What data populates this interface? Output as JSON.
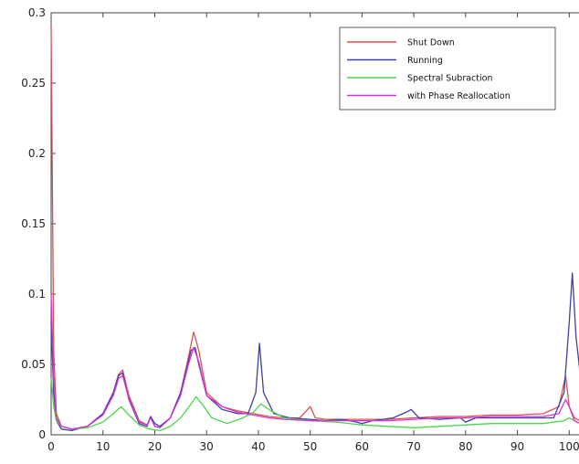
{
  "chart_data": {
    "type": "line",
    "title": "",
    "xlabel": "",
    "ylabel": "",
    "xlim": [
      0,
      104
    ],
    "ylim": [
      0,
      0.3
    ],
    "xticks": [
      0,
      10,
      20,
      30,
      40,
      50,
      60,
      70,
      80,
      90,
      100
    ],
    "yticks": [
      0,
      0.05,
      0.1,
      0.15,
      0.2,
      0.25,
      0.3
    ],
    "ytick_labels": [
      "0",
      "0.05",
      "0.1",
      "0.15",
      "0.2",
      "0.25",
      "0.3"
    ],
    "grid": false,
    "legend": "top-right",
    "series": [
      {
        "name": "Shut Down",
        "color": "#d9534f",
        "x": [
          0,
          0.5,
          1,
          2,
          4,
          7,
          10,
          12,
          13,
          13.8,
          15,
          17,
          18.5,
          19.2,
          20,
          21,
          23,
          25,
          26.5,
          27.5,
          28.5,
          30,
          33,
          36,
          39,
          42,
          45,
          48,
          50,
          51,
          53,
          56,
          60,
          65,
          70,
          75,
          80,
          85,
          90,
          95,
          98,
          99.3,
          100,
          101,
          102,
          104
        ],
        "y": [
          0.29,
          0.06,
          0.015,
          0.006,
          0.004,
          0.006,
          0.015,
          0.03,
          0.043,
          0.046,
          0.028,
          0.01,
          0.007,
          0.013,
          0.006,
          0.005,
          0.012,
          0.03,
          0.055,
          0.073,
          0.06,
          0.03,
          0.02,
          0.017,
          0.015,
          0.013,
          0.012,
          0.012,
          0.02,
          0.012,
          0.011,
          0.011,
          0.011,
          0.011,
          0.012,
          0.013,
          0.013,
          0.014,
          0.014,
          0.015,
          0.02,
          0.042,
          0.02,
          0.012,
          0.01,
          0.01
        ]
      },
      {
        "name": "Running",
        "color": "#3f3fa8",
        "x": [
          0,
          0.5,
          1,
          2,
          4,
          7,
          10,
          12,
          13,
          13.8,
          15,
          17,
          18.5,
          19.2,
          20,
          21,
          23,
          25,
          27,
          27.8,
          28.5,
          30,
          33,
          36,
          38,
          39.5,
          40.2,
          41,
          43,
          46,
          50,
          53,
          56,
          59,
          60,
          62,
          66,
          68.5,
          69.5,
          71,
          75,
          79,
          80,
          82,
          86,
          90,
          94,
          97,
          99,
          100,
          100.6,
          101.3,
          102.5,
          104
        ],
        "y": [
          0.08,
          0.03,
          0.01,
          0.004,
          0.003,
          0.006,
          0.015,
          0.03,
          0.042,
          0.044,
          0.025,
          0.008,
          0.006,
          0.013,
          0.008,
          0.006,
          0.012,
          0.03,
          0.06,
          0.062,
          0.05,
          0.028,
          0.018,
          0.015,
          0.015,
          0.03,
          0.065,
          0.03,
          0.015,
          0.012,
          0.011,
          0.01,
          0.011,
          0.009,
          0.008,
          0.01,
          0.012,
          0.016,
          0.018,
          0.012,
          0.011,
          0.012,
          0.009,
          0.012,
          0.012,
          0.012,
          0.012,
          0.012,
          0.03,
          0.08,
          0.115,
          0.07,
          0.03,
          0.022
        ]
      },
      {
        "name": "Spectral Subraction",
        "color": "#49d649",
        "x": [
          0,
          0.5,
          1,
          2,
          4,
          7,
          10,
          12,
          13.5,
          15,
          17,
          19,
          21,
          23,
          25,
          27,
          28,
          29.5,
          31,
          34,
          37,
          39,
          40.5,
          42,
          45,
          50,
          55,
          60,
          65,
          70,
          75,
          80,
          85,
          90,
          95,
          99,
          100,
          101,
          102,
          104
        ],
        "y": [
          0.04,
          0.02,
          0.01,
          0.006,
          0.004,
          0.005,
          0.009,
          0.015,
          0.02,
          0.014,
          0.007,
          0.004,
          0.003,
          0.006,
          0.012,
          0.022,
          0.027,
          0.02,
          0.012,
          0.008,
          0.012,
          0.016,
          0.022,
          0.018,
          0.012,
          0.01,
          0.009,
          0.007,
          0.006,
          0.005,
          0.006,
          0.007,
          0.008,
          0.008,
          0.008,
          0.01,
          0.012,
          0.01,
          0.008,
          0.007
        ]
      },
      {
        "name": "with Phase Reallocation",
        "color": "#d633d6",
        "x": [
          0,
          0.5,
          1,
          2,
          4,
          7,
          10,
          12,
          13,
          13.8,
          15,
          17,
          18.5,
          19.2,
          20,
          21,
          23,
          25,
          26.5,
          27.5,
          28.5,
          30,
          33,
          36,
          39,
          42,
          45,
          50,
          55,
          60,
          65,
          70,
          75,
          80,
          85,
          90,
          95,
          98,
          99.3,
          100,
          101,
          102,
          104
        ],
        "y": [
          0.1,
          0.04,
          0.012,
          0.006,
          0.004,
          0.006,
          0.014,
          0.028,
          0.04,
          0.042,
          0.026,
          0.009,
          0.007,
          0.012,
          0.006,
          0.005,
          0.012,
          0.028,
          0.05,
          0.062,
          0.052,
          0.028,
          0.02,
          0.016,
          0.014,
          0.012,
          0.011,
          0.01,
          0.01,
          0.01,
          0.01,
          0.011,
          0.012,
          0.012,
          0.013,
          0.013,
          0.013,
          0.015,
          0.025,
          0.02,
          0.01,
          0.008,
          0.008
        ]
      }
    ]
  }
}
